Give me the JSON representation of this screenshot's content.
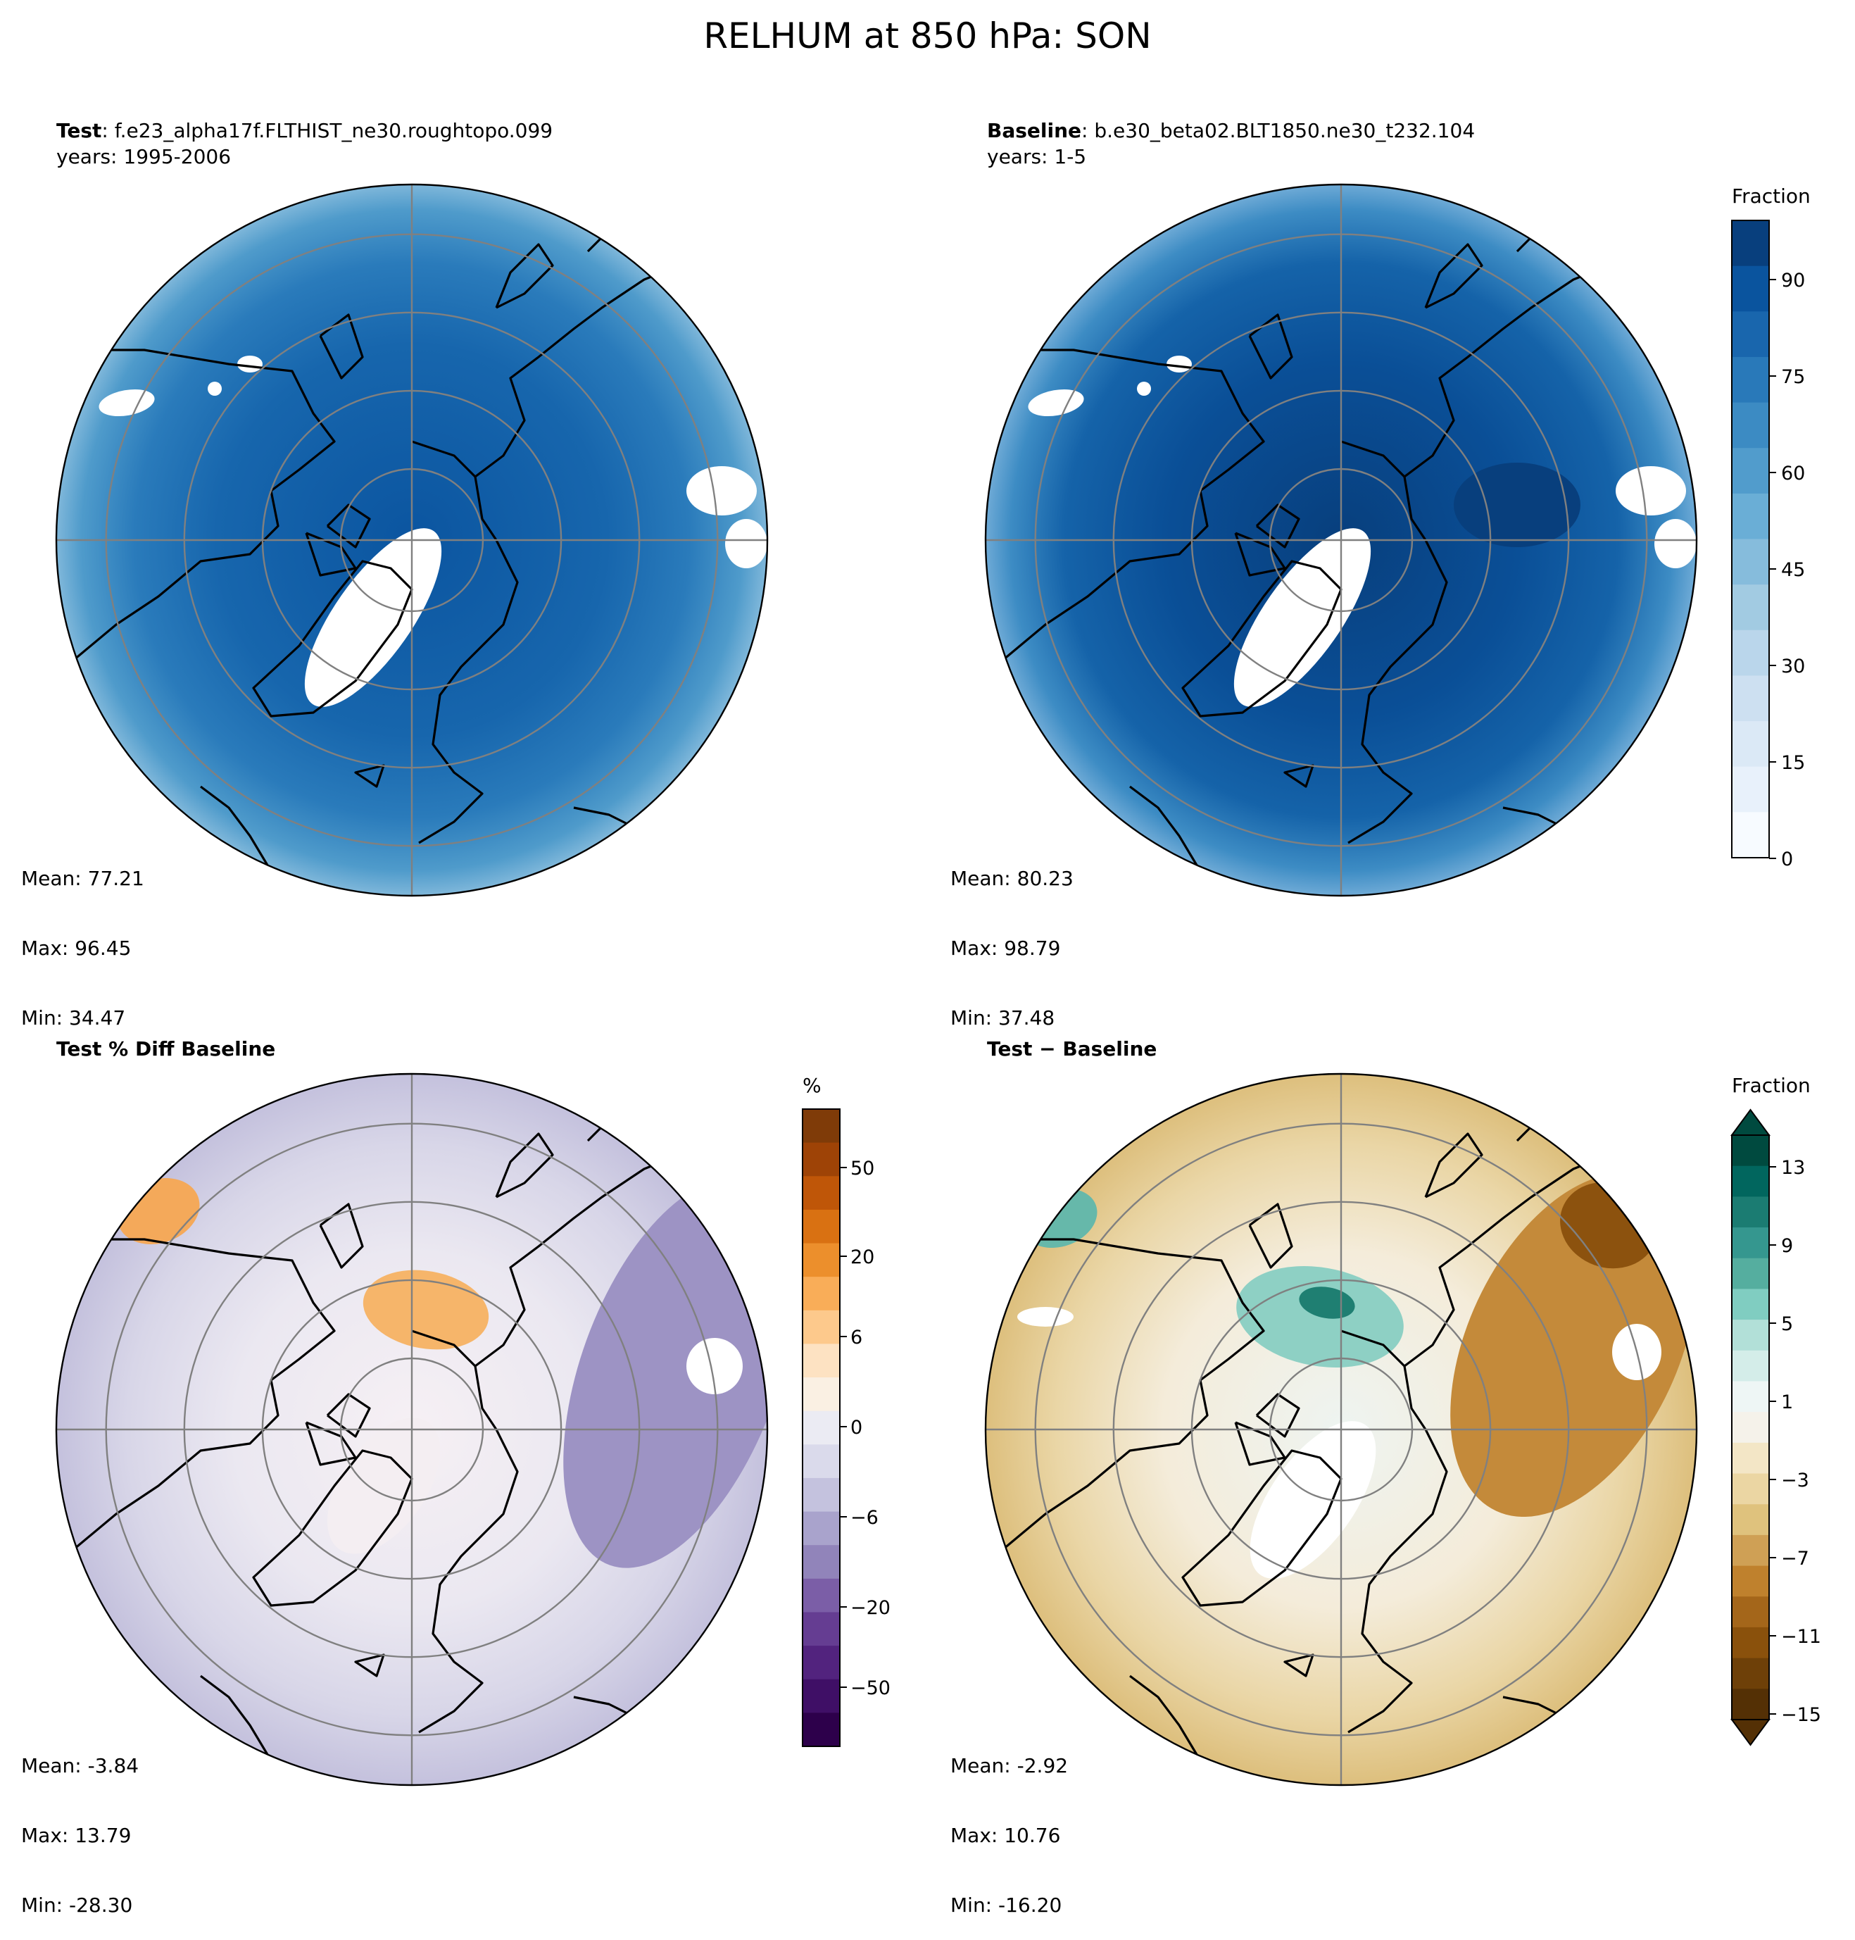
{
  "figure_title": "RELHUM at 850 hPa: SON",
  "panels": {
    "test": {
      "label_bold": "Test",
      "label_rest": ": f.e23_alpha17f.FLTHIST_ne30.roughtopo.099",
      "years": "years: 1995-2006",
      "mean": "Mean: 77.21",
      "max": "Max: 96.45",
      "min": "Min: 34.47"
    },
    "baseline": {
      "label_bold": "Baseline",
      "label_rest": ": b.e30_beta02.BLT1850.ne30_t232.104",
      "years": "years: 1-5",
      "mean": "Mean: 80.23",
      "max": "Max: 98.79",
      "min": "Min: 37.48"
    },
    "pct_diff": {
      "label_bold": "Test % Diff Baseline",
      "mean": "Mean: -3.84",
      "max": "Max: 13.79",
      "min": "Min: -28.30"
    },
    "diff": {
      "label_bold": "Test − Baseline",
      "mean": "Mean: -2.92",
      "max": "Max: 10.76",
      "min": "Min: -16.20"
    }
  },
  "colorbars": {
    "fraction": {
      "label": "Fraction",
      "ticks": [
        "0",
        "15",
        "30",
        "45",
        "60",
        "75",
        "90"
      ],
      "colors": [
        "#f7fbff",
        "#e8f1fb",
        "#dbe9f6",
        "#cde0f1",
        "#bad6eb",
        "#a2cbe2",
        "#86bcdc",
        "#6aaed6",
        "#519ccc",
        "#3c8bc3",
        "#2979b9",
        "#1966ad",
        "#0a549e",
        "#083f7d"
      ]
    },
    "percent": {
      "label": "%",
      "ticks": [
        "−50",
        "−20",
        "−6",
        "0",
        "6",
        "20",
        "50"
      ],
      "colors": [
        "#2d004b",
        "#3f0f66",
        "#52237e",
        "#653d92",
        "#7b5ea7",
        "#9184ba",
        "#a9a3cc",
        "#c4c2de",
        "#dadaeb",
        "#ebebf3",
        "#faf0e3",
        "#fde2c2",
        "#fdc98c",
        "#f9ad58",
        "#ec8f2c",
        "#d97112",
        "#bf5608",
        "#9e4306",
        "#7f3b08"
      ]
    },
    "fraction_diff": {
      "label": "Fraction",
      "ticks": [
        "13",
        "9",
        "5",
        "1",
        "−3",
        "−7",
        "−11",
        "−15"
      ],
      "colors": [
        "#543005",
        "#6e4008",
        "#8a510c",
        "#a4661a",
        "#bf812d",
        "#cfa055",
        "#dfc27d",
        "#ebd6a3",
        "#f3e6c6",
        "#f5f2ea",
        "#eef6f5",
        "#d4ede9",
        "#b2e0d8",
        "#80cdc1",
        "#55ae9f",
        "#35978f",
        "#1b7c72",
        "#01665e",
        "#004a3f"
      ]
    }
  }
}
